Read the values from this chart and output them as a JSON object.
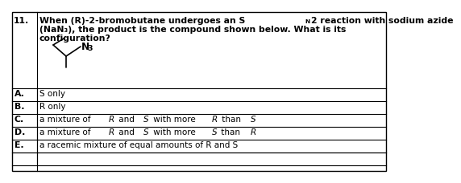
{
  "question_number": "11.",
  "q_line1a": "When (R)-2-bromobutane undergoes an S",
  "q_line1_sub": "N",
  "q_line1b": "2 reaction with sodium azide",
  "q_line2": "(NaN₃), the product is the compound shown below. What is its",
  "q_line3": "configuration?",
  "options": [
    [
      "A.",
      "S only",
      false
    ],
    [
      "B.",
      "R only",
      false
    ],
    [
      "C.",
      "a mixture of R and S with more R than S",
      true
    ],
    [
      "D.",
      "a mixture of R and S with more S than R",
      true
    ],
    [
      "E.",
      "a racemic mixture of equal amounts of R and S",
      false
    ]
  ],
  "bg_color": "#ffffff",
  "border_color": "#000000",
  "text_color": "#000000",
  "font_size": 7.5,
  "bold_font_size": 7.8
}
